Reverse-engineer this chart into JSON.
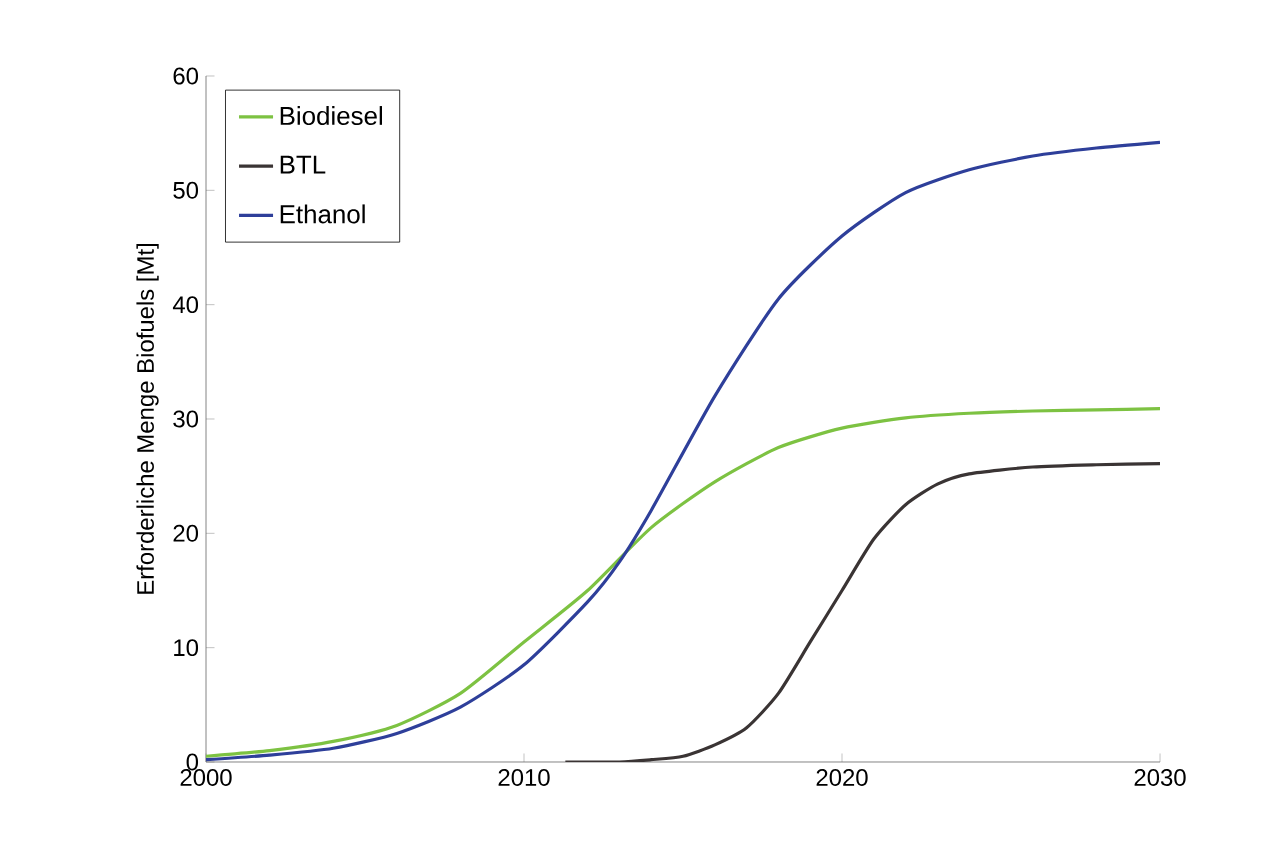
{
  "chart_data": {
    "type": "line",
    "ylabel": "Erforderliche Menge Biofuels [Mt]",
    "xlim": [
      2000,
      2030
    ],
    "xticks": [
      2000,
      2010,
      2020,
      2030
    ],
    "ylim": [
      0,
      60
    ],
    "yticks": [
      0,
      10,
      20,
      30,
      40,
      50,
      60
    ],
    "legend": "top left",
    "grid": false,
    "series": [
      {
        "name": "Biodiesel",
        "color": "#7dc242",
        "x": [
          2000,
          2002,
          2004,
          2006,
          2008,
          2010,
          2012,
          2014,
          2016,
          2018,
          2020,
          2022,
          2024,
          2026,
          2028,
          2030
        ],
        "values": [
          0.5,
          1,
          1.8,
          3.2,
          6,
          10.5,
          15,
          20.5,
          24.5,
          27.5,
          29.2,
          30.1,
          30.5,
          30.7,
          30.8,
          30.9
        ]
      },
      {
        "name": "BTL",
        "color": "#3a3434",
        "x": [
          2011.3,
          2013,
          2014,
          2015,
          2016,
          2017,
          2018,
          2019,
          2020,
          2021,
          2022,
          2023,
          2024,
          2026,
          2028,
          2030
        ],
        "values": [
          0,
          0,
          0.2,
          0.5,
          1.5,
          3,
          6,
          10.5,
          15,
          19.5,
          22.5,
          24.3,
          25.2,
          25.8,
          26,
          26.1
        ]
      },
      {
        "name": "Ethanol",
        "color": "#2e3f9a",
        "x": [
          2000,
          2002,
          2004,
          2006,
          2008,
          2010,
          2012,
          2013,
          2014,
          2016,
          2018,
          2020,
          2022,
          2024,
          2026,
          2028,
          2030
        ],
        "values": [
          0.2,
          0.6,
          1.2,
          2.5,
          4.8,
          8.5,
          14,
          17.5,
          22,
          32,
          40.5,
          46,
          49.8,
          51.8,
          53,
          53.7,
          54.2
        ]
      }
    ]
  }
}
